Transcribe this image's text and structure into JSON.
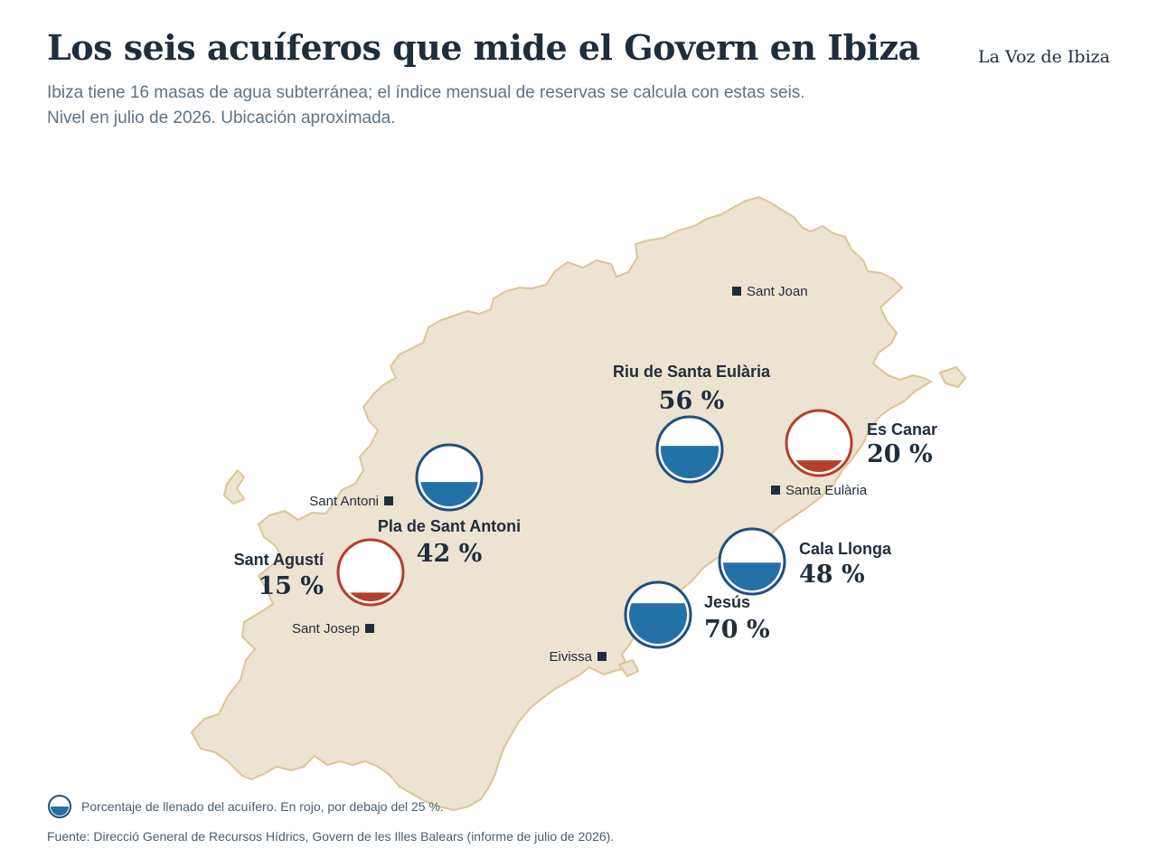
{
  "header": {
    "title": "Los seis acuíferos que mide el Govern en Ibiza",
    "brand": "La Voz de Ibiza",
    "subtitle_line1": "Ibiza tiene 16 masas de agua subterránea; el índice mensual de reservas se calcula con estas seis.",
    "subtitle_line2": "Nivel en julio de 2026. Ubicación aproximada."
  },
  "colors": {
    "land": "#ede3d1",
    "coast": "#dcc596",
    "ink": "#1f2d3d",
    "water_normal": "#2471a8",
    "ring_normal": "#1f4f80",
    "water_low": "#b3402a",
    "ring_low": "#b3402a",
    "low_threshold_percent": 25
  },
  "towns": [
    {
      "name": "Sant Joan"
    },
    {
      "name": "Sant Antoni"
    },
    {
      "name": "Santa Eulària"
    },
    {
      "name": "Sant Josep"
    },
    {
      "name": "Eivissa"
    }
  ],
  "aquifers": [
    {
      "name": "Riu de Santa Eulària",
      "percent": 56,
      "value_label": "56 %"
    },
    {
      "name": "Es Canar",
      "percent": 20,
      "value_label": "20 %"
    },
    {
      "name": "Pla de Sant Antoni",
      "percent": 42,
      "value_label": "42 %"
    },
    {
      "name": "Sant Agustí",
      "percent": 15,
      "value_label": "15 %"
    },
    {
      "name": "Cala Llonga",
      "percent": 48,
      "value_label": "48 %"
    },
    {
      "name": "Jesús",
      "percent": 70,
      "value_label": "70 %"
    }
  ],
  "legend": {
    "label": "Porcentaje de llenado del acuífero. En rojo, por debajo del 25 %.",
    "sample_percent": 50
  },
  "source": "Fuente: Direcció General de Recursos Hídrics, Govern de les Illes Balears (informe de julio de 2026)."
}
